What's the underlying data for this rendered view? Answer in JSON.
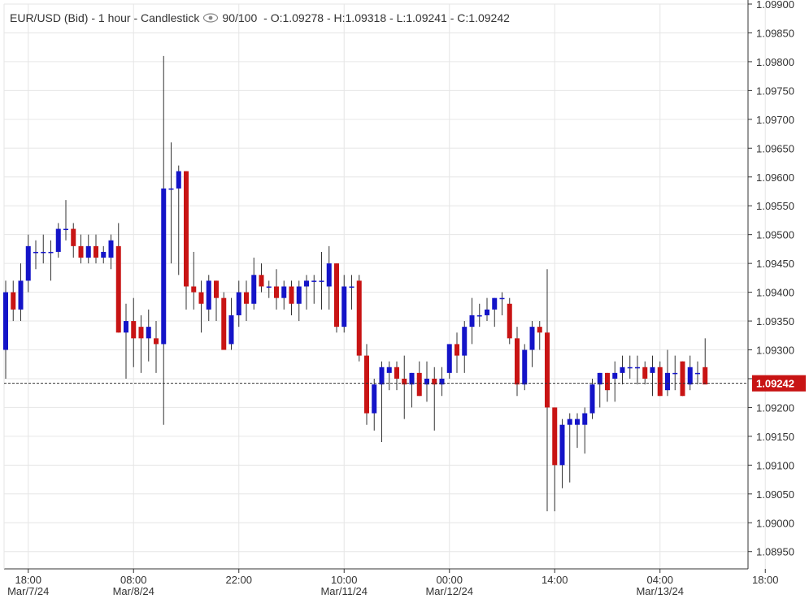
{
  "header": {
    "title": "EUR/USD (Bid) - 1 hour - Candlestick",
    "visibility_icon": "eye-icon",
    "counter": "90/100",
    "ohlc": "O:1.09278 - H:1.09318 - L:1.09241 - C:1.09242"
  },
  "colors": {
    "up": "#1414c8",
    "down": "#c81414",
    "grid": "#e6e6e6",
    "axis": "#333333",
    "last_price_bg": "#c81414"
  },
  "chart_data": {
    "type": "candlestick",
    "pair": "EUR/USD",
    "interval": "1 hour",
    "ylim": [
      1.0892,
      1.099
    ],
    "y_ticks": [
      "1.08950",
      "1.09000",
      "1.09050",
      "1.09100",
      "1.09150",
      "1.09200",
      "1.09250",
      "1.09300",
      "1.09350",
      "1.09400",
      "1.09450",
      "1.09500",
      "1.09550",
      "1.09600",
      "1.09650",
      "1.09700",
      "1.09750",
      "1.09800",
      "1.09850",
      "1.09900"
    ],
    "x_tick_labels": [
      {
        "index": 3,
        "time": "18:00",
        "date": "Mar/7/24"
      },
      {
        "index": 17,
        "time": "08:00",
        "date": "Mar/8/24"
      },
      {
        "index": 31,
        "time": "22:00",
        "date": ""
      },
      {
        "index": 45,
        "time": "10:00",
        "date": "Mar/11/24"
      },
      {
        "index": 59,
        "time": "00:00",
        "date": "Mar/12/24"
      },
      {
        "index": 73,
        "time": "14:00",
        "date": ""
      },
      {
        "index": 87,
        "time": "04:00",
        "date": "Mar/13/24"
      },
      {
        "index": 101,
        "time": "18:00",
        "date": ""
      }
    ],
    "last_price": "1.09242",
    "candles": [
      {
        "o": 1.093,
        "h": 1.0942,
        "l": 1.0925,
        "c": 1.094
      },
      {
        "o": 1.094,
        "h": 1.0942,
        "l": 1.0935,
        "c": 1.0937
      },
      {
        "o": 1.0937,
        "h": 1.0945,
        "l": 1.0935,
        "c": 1.0942
      },
      {
        "o": 1.0942,
        "h": 1.095,
        "l": 1.094,
        "c": 1.0948
      },
      {
        "o": 1.0947,
        "h": 1.0949,
        "l": 1.0944,
        "c": 1.0947
      },
      {
        "o": 1.0947,
        "h": 1.095,
        "l": 1.0945,
        "c": 1.0947
      },
      {
        "o": 1.0947,
        "h": 1.0949,
        "l": 1.0942,
        "c": 1.0947
      },
      {
        "o": 1.0947,
        "h": 1.0952,
        "l": 1.0946,
        "c": 1.0951
      },
      {
        "o": 1.0951,
        "h": 1.0956,
        "l": 1.0949,
        "c": 1.0951
      },
      {
        "o": 1.0951,
        "h": 1.0952,
        "l": 1.0946,
        "c": 1.0948
      },
      {
        "o": 1.0948,
        "h": 1.095,
        "l": 1.0945,
        "c": 1.0946
      },
      {
        "o": 1.0946,
        "h": 1.095,
        "l": 1.0945,
        "c": 1.0948
      },
      {
        "o": 1.0948,
        "h": 1.095,
        "l": 1.0945,
        "c": 1.0946
      },
      {
        "o": 1.0946,
        "h": 1.0948,
        "l": 1.0945,
        "c": 1.0947
      },
      {
        "o": 1.0946,
        "h": 1.095,
        "l": 1.0944,
        "c": 1.0949
      },
      {
        "o": 1.0948,
        "h": 1.0952,
        "l": 1.0933,
        "c": 1.0933
      },
      {
        "o": 1.0933,
        "h": 1.0938,
        "l": 1.0925,
        "c": 1.0935
      },
      {
        "o": 1.0935,
        "h": 1.0939,
        "l": 1.0927,
        "c": 1.0932
      },
      {
        "o": 1.0934,
        "h": 1.0936,
        "l": 1.0926,
        "c": 1.0932
      },
      {
        "o": 1.0932,
        "h": 1.0937,
        "l": 1.0928,
        "c": 1.0934
      },
      {
        "o": 1.0932,
        "h": 1.0935,
        "l": 1.0926,
        "c": 1.0931
      },
      {
        "o": 1.0931,
        "h": 1.0981,
        "l": 1.0917,
        "c": 1.0958
      },
      {
        "o": 1.0958,
        "h": 1.0966,
        "l": 1.0945,
        "c": 1.0958
      },
      {
        "o": 1.0958,
        "h": 1.0962,
        "l": 1.0943,
        "c": 1.0961
      },
      {
        "o": 1.0961,
        "h": 1.0961,
        "l": 1.0937,
        "c": 1.0941
      },
      {
        "o": 1.0941,
        "h": 1.0947,
        "l": 1.0937,
        "c": 1.094
      },
      {
        "o": 1.094,
        "h": 1.0942,
        "l": 1.0933,
        "c": 1.0938
      },
      {
        "o": 1.0937,
        "h": 1.0943,
        "l": 1.0935,
        "c": 1.0942
      },
      {
        "o": 1.0942,
        "h": 1.0942,
        "l": 1.0935,
        "c": 1.0939
      },
      {
        "o": 1.0939,
        "h": 1.094,
        "l": 1.093,
        "c": 1.093
      },
      {
        "o": 1.0931,
        "h": 1.0939,
        "l": 1.093,
        "c": 1.0936
      },
      {
        "o": 1.0936,
        "h": 1.0942,
        "l": 1.0934,
        "c": 1.094
      },
      {
        "o": 1.094,
        "h": 1.0942,
        "l": 1.0935,
        "c": 1.0938
      },
      {
        "o": 1.0938,
        "h": 1.0946,
        "l": 1.0937,
        "c": 1.0943
      },
      {
        "o": 1.0943,
        "h": 1.0945,
        "l": 1.094,
        "c": 1.0941
      },
      {
        "o": 1.0941,
        "h": 1.0942,
        "l": 1.0939,
        "c": 1.0941
      },
      {
        "o": 1.0941,
        "h": 1.0944,
        "l": 1.0937,
        "c": 1.0939
      },
      {
        "o": 1.0939,
        "h": 1.0942,
        "l": 1.0937,
        "c": 1.0941
      },
      {
        "o": 1.0941,
        "h": 1.0942,
        "l": 1.0936,
        "c": 1.0938
      },
      {
        "o": 1.0938,
        "h": 1.0942,
        "l": 1.0935,
        "c": 1.0941
      },
      {
        "o": 1.0941,
        "h": 1.0943,
        "l": 1.0937,
        "c": 1.0942
      },
      {
        "o": 1.0942,
        "h": 1.0943,
        "l": 1.0938,
        "c": 1.0942
      },
      {
        "o": 1.0942,
        "h": 1.0947,
        "l": 1.0937,
        "c": 1.0942
      },
      {
        "o": 1.0941,
        "h": 1.0948,
        "l": 1.0937,
        "c": 1.0945
      },
      {
        "o": 1.0945,
        "h": 1.0945,
        "l": 1.0933,
        "c": 1.0934
      },
      {
        "o": 1.0934,
        "h": 1.0943,
        "l": 1.0933,
        "c": 1.0941
      },
      {
        "o": 1.0941,
        "h": 1.0943,
        "l": 1.0937,
        "c": 1.0941
      },
      {
        "o": 1.0942,
        "h": 1.0943,
        "l": 1.0928,
        "c": 1.0929
      },
      {
        "o": 1.0929,
        "h": 1.0931,
        "l": 1.0917,
        "c": 1.0919
      },
      {
        "o": 1.0919,
        "h": 1.0925,
        "l": 1.0916,
        "c": 1.0924
      },
      {
        "o": 1.0924,
        "h": 1.0928,
        "l": 1.0914,
        "c": 1.0927
      },
      {
        "o": 1.0926,
        "h": 1.0928,
        "l": 1.0923,
        "c": 1.0927
      },
      {
        "o": 1.0927,
        "h": 1.0928,
        "l": 1.0923,
        "c": 1.0925
      },
      {
        "o": 1.0925,
        "h": 1.0929,
        "l": 1.0918,
        "c": 1.0924
      },
      {
        "o": 1.0924,
        "h": 1.0926,
        "l": 1.092,
        "c": 1.0926
      },
      {
        "o": 1.0926,
        "h": 1.0928,
        "l": 1.0922,
        "c": 1.0922
      },
      {
        "o": 1.0924,
        "h": 1.0928,
        "l": 1.0921,
        "c": 1.0925
      },
      {
        "o": 1.0925,
        "h": 1.0927,
        "l": 1.0916,
        "c": 1.0924
      },
      {
        "o": 1.0924,
        "h": 1.0927,
        "l": 1.0922,
        "c": 1.0925
      },
      {
        "o": 1.0926,
        "h": 1.0931,
        "l": 1.0925,
        "c": 1.0931
      },
      {
        "o": 1.0931,
        "h": 1.0933,
        "l": 1.0926,
        "c": 1.0929
      },
      {
        "o": 1.0929,
        "h": 1.0935,
        "l": 1.0926,
        "c": 1.0934
      },
      {
        "o": 1.0934,
        "h": 1.0939,
        "l": 1.0931,
        "c": 1.0936
      },
      {
        "o": 1.0936,
        "h": 1.0938,
        "l": 1.0934,
        "c": 1.0936
      },
      {
        "o": 1.0936,
        "h": 1.0939,
        "l": 1.0935,
        "c": 1.0937
      },
      {
        "o": 1.0937,
        "h": 1.0939,
        "l": 1.0934,
        "c": 1.0939
      },
      {
        "o": 1.0939,
        "h": 1.094,
        "l": 1.0936,
        "c": 1.0939
      },
      {
        "o": 1.0938,
        "h": 1.0939,
        "l": 1.0931,
        "c": 1.0932
      },
      {
        "o": 1.0932,
        "h": 1.0934,
        "l": 1.0922,
        "c": 1.0924
      },
      {
        "o": 1.0924,
        "h": 1.0931,
        "l": 1.0923,
        "c": 1.093
      },
      {
        "o": 1.093,
        "h": 1.0935,
        "l": 1.0927,
        "c": 1.0934
      },
      {
        "o": 1.0934,
        "h": 1.0935,
        "l": 1.093,
        "c": 1.0933
      },
      {
        "o": 1.0933,
        "h": 1.0944,
        "l": 1.0902,
        "c": 1.092
      },
      {
        "o": 1.092,
        "h": 1.092,
        "l": 1.0902,
        "c": 1.091
      },
      {
        "o": 1.091,
        "h": 1.0918,
        "l": 1.0906,
        "c": 1.0917
      },
      {
        "o": 1.0917,
        "h": 1.0919,
        "l": 1.0907,
        "c": 1.0918
      },
      {
        "o": 1.0917,
        "h": 1.0919,
        "l": 1.0913,
        "c": 1.0918
      },
      {
        "o": 1.0917,
        "h": 1.092,
        "l": 1.0912,
        "c": 1.0919
      },
      {
        "o": 1.0919,
        "h": 1.0925,
        "l": 1.0918,
        "c": 1.0924
      },
      {
        "o": 1.0924,
        "h": 1.0926,
        "l": 1.092,
        "c": 1.0926
      },
      {
        "o": 1.0926,
        "h": 1.0926,
        "l": 1.0921,
        "c": 1.0923
      },
      {
        "o": 1.0925,
        "h": 1.0928,
        "l": 1.0921,
        "c": 1.0926
      },
      {
        "o": 1.0926,
        "h": 1.0929,
        "l": 1.0924,
        "c": 1.0927
      },
      {
        "o": 1.0927,
        "h": 1.0929,
        "l": 1.0925,
        "c": 1.0927
      },
      {
        "o": 1.0927,
        "h": 1.0929,
        "l": 1.0924,
        "c": 1.0927
      },
      {
        "o": 1.0927,
        "h": 1.0928,
        "l": 1.0924,
        "c": 1.0925
      },
      {
        "o": 1.0926,
        "h": 1.0929,
        "l": 1.0922,
        "c": 1.0927
      },
      {
        "o": 1.0927,
        "h": 1.0928,
        "l": 1.0922,
        "c": 1.0922
      },
      {
        "o": 1.0923,
        "h": 1.093,
        "l": 1.0922,
        "c": 1.0926
      },
      {
        "o": 1.0926,
        "h": 1.0929,
        "l": 1.0923,
        "c": 1.0926
      },
      {
        "o": 1.0928,
        "h": 1.0928,
        "l": 1.0922,
        "c": 1.0922
      },
      {
        "o": 1.0924,
        "h": 1.0929,
        "l": 1.0923,
        "c": 1.0927
      },
      {
        "o": 1.0926,
        "h": 1.0928,
        "l": 1.0924,
        "c": 1.0926
      },
      {
        "o": 1.0927,
        "h": 1.0932,
        "l": 1.0924,
        "c": 1.0924
      }
    ]
  }
}
